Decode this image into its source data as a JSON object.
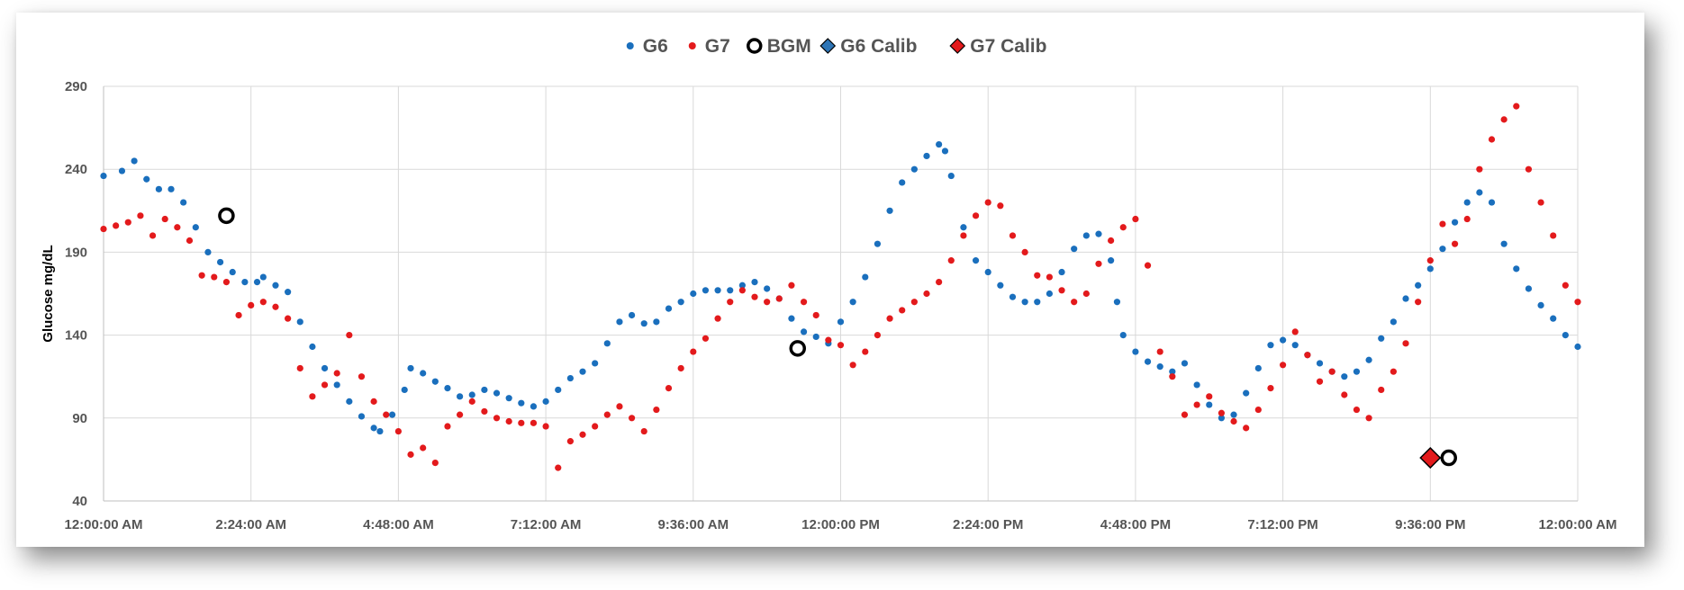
{
  "chart_data": {
    "type": "scatter",
    "title": "",
    "ylabel": "Glucose mg/dL",
    "xlabel": "",
    "ylim": [
      40,
      290
    ],
    "yticks": [
      40,
      90,
      140,
      190,
      240,
      290
    ],
    "xlim": [
      0,
      24
    ],
    "xtick_hours": [
      0,
      2.4,
      4.8,
      7.2,
      9.6,
      12,
      14.4,
      16.8,
      19.2,
      21.6,
      24
    ],
    "xtick_labels": [
      "12:00:00 AM",
      "2:24:00 AM",
      "4:48:00 AM",
      "7:12:00 AM",
      "9:36:00 AM",
      "12:00:00 PM",
      "2:24:00 PM",
      "4:48:00 PM",
      "7:12:00 PM",
      "9:36:00 PM",
      "12:00:00 AM"
    ],
    "grid": true,
    "legend_position": "top-center",
    "series": [
      {
        "name": "G6",
        "marker": "dot",
        "color": "#1a6fbd",
        "points": [
          [
            0.0,
            236
          ],
          [
            0.3,
            239
          ],
          [
            0.5,
            245
          ],
          [
            0.7,
            234
          ],
          [
            0.9,
            228
          ],
          [
            1.1,
            228
          ],
          [
            1.3,
            220
          ],
          [
            1.5,
            205
          ],
          [
            1.7,
            190
          ],
          [
            1.9,
            184
          ],
          [
            2.1,
            178
          ],
          [
            2.3,
            172
          ],
          [
            2.5,
            172
          ],
          [
            2.6,
            175
          ],
          [
            2.8,
            170
          ],
          [
            3.0,
            166
          ],
          [
            3.2,
            148
          ],
          [
            3.4,
            133
          ],
          [
            3.6,
            120
          ],
          [
            3.8,
            110
          ],
          [
            4.0,
            100
          ],
          [
            4.2,
            91
          ],
          [
            4.4,
            84
          ],
          [
            4.5,
            82
          ],
          [
            4.7,
            92
          ],
          [
            4.9,
            107
          ],
          [
            5.0,
            120
          ],
          [
            5.2,
            117
          ],
          [
            5.4,
            112
          ],
          [
            5.6,
            108
          ],
          [
            5.8,
            103
          ],
          [
            6.0,
            104
          ],
          [
            6.2,
            107
          ],
          [
            6.4,
            105
          ],
          [
            6.6,
            102
          ],
          [
            6.8,
            99
          ],
          [
            7.0,
            97
          ],
          [
            7.2,
            100
          ],
          [
            7.4,
            107
          ],
          [
            7.6,
            114
          ],
          [
            7.8,
            118
          ],
          [
            8.0,
            123
          ],
          [
            8.2,
            135
          ],
          [
            8.4,
            148
          ],
          [
            8.6,
            152
          ],
          [
            8.8,
            147
          ],
          [
            9.0,
            148
          ],
          [
            9.2,
            156
          ],
          [
            9.4,
            160
          ],
          [
            9.6,
            165
          ],
          [
            9.8,
            167
          ],
          [
            10.0,
            167
          ],
          [
            10.2,
            167
          ],
          [
            10.4,
            170
          ],
          [
            10.6,
            172
          ],
          [
            10.8,
            168
          ],
          [
            11.0,
            162
          ],
          [
            11.2,
            150
          ],
          [
            11.4,
            142
          ],
          [
            11.6,
            139
          ],
          [
            11.8,
            135
          ],
          [
            12.0,
            148
          ],
          [
            12.2,
            160
          ],
          [
            12.4,
            175
          ],
          [
            12.6,
            195
          ],
          [
            12.8,
            215
          ],
          [
            13.0,
            232
          ],
          [
            13.2,
            240
          ],
          [
            13.4,
            248
          ],
          [
            13.6,
            255
          ],
          [
            13.7,
            251
          ],
          [
            13.8,
            236
          ],
          [
            14.0,
            205
          ],
          [
            14.2,
            185
          ],
          [
            14.4,
            178
          ],
          [
            14.6,
            170
          ],
          [
            14.8,
            163
          ],
          [
            15.0,
            160
          ],
          [
            15.2,
            160
          ],
          [
            15.4,
            165
          ],
          [
            15.6,
            178
          ],
          [
            15.8,
            192
          ],
          [
            16.0,
            200
          ],
          [
            16.2,
            201
          ],
          [
            16.4,
            185
          ],
          [
            16.5,
            160
          ],
          [
            16.6,
            140
          ],
          [
            16.8,
            130
          ],
          [
            17.0,
            124
          ],
          [
            17.2,
            121
          ],
          [
            17.4,
            118
          ],
          [
            17.6,
            123
          ],
          [
            17.8,
            110
          ],
          [
            18.0,
            98
          ],
          [
            18.2,
            90
          ],
          [
            18.4,
            92
          ],
          [
            18.6,
            105
          ],
          [
            18.8,
            120
          ],
          [
            19.0,
            134
          ],
          [
            19.2,
            137
          ],
          [
            19.4,
            134
          ],
          [
            19.6,
            128
          ],
          [
            19.8,
            123
          ],
          [
            20.0,
            118
          ],
          [
            20.2,
            115
          ],
          [
            20.4,
            118
          ],
          [
            20.6,
            125
          ],
          [
            20.8,
            138
          ],
          [
            21.0,
            148
          ],
          [
            21.2,
            162
          ],
          [
            21.4,
            170
          ],
          [
            21.6,
            180
          ],
          [
            21.8,
            192
          ],
          [
            22.0,
            208
          ],
          [
            22.2,
            220
          ],
          [
            22.4,
            226
          ],
          [
            22.6,
            220
          ],
          [
            22.8,
            195
          ],
          [
            23.0,
            180
          ],
          [
            23.2,
            168
          ],
          [
            23.4,
            158
          ],
          [
            23.6,
            150
          ],
          [
            23.8,
            140
          ],
          [
            24.0,
            133
          ]
        ]
      },
      {
        "name": "G7",
        "marker": "dot",
        "color": "#e31a1c",
        "points": [
          [
            0.0,
            204
          ],
          [
            0.2,
            206
          ],
          [
            0.4,
            208
          ],
          [
            0.6,
            212
          ],
          [
            0.8,
            200
          ],
          [
            1.0,
            210
          ],
          [
            1.2,
            205
          ],
          [
            1.4,
            197
          ],
          [
            1.6,
            176
          ],
          [
            1.8,
            175
          ],
          [
            2.0,
            172
          ],
          [
            2.2,
            152
          ],
          [
            2.4,
            158
          ],
          [
            2.6,
            160
          ],
          [
            2.8,
            157
          ],
          [
            3.0,
            150
          ],
          [
            3.2,
            120
          ],
          [
            3.4,
            103
          ],
          [
            3.6,
            110
          ],
          [
            3.8,
            117
          ],
          [
            4.0,
            140
          ],
          [
            4.2,
            115
          ],
          [
            4.4,
            100
          ],
          [
            4.6,
            92
          ],
          [
            4.8,
            82
          ],
          [
            5.0,
            68
          ],
          [
            5.2,
            72
          ],
          [
            5.4,
            63
          ],
          [
            5.6,
            85
          ],
          [
            5.8,
            92
          ],
          [
            6.0,
            100
          ],
          [
            6.2,
            94
          ],
          [
            6.4,
            90
          ],
          [
            6.6,
            88
          ],
          [
            6.8,
            87
          ],
          [
            7.0,
            87
          ],
          [
            7.2,
            85
          ],
          [
            7.4,
            60
          ],
          [
            7.6,
            76
          ],
          [
            7.8,
            80
          ],
          [
            8.0,
            85
          ],
          [
            8.2,
            92
          ],
          [
            8.4,
            97
          ],
          [
            8.6,
            90
          ],
          [
            8.8,
            82
          ],
          [
            9.0,
            95
          ],
          [
            9.2,
            108
          ],
          [
            9.4,
            120
          ],
          [
            9.6,
            130
          ],
          [
            9.8,
            138
          ],
          [
            10.0,
            150
          ],
          [
            10.2,
            160
          ],
          [
            10.4,
            167
          ],
          [
            10.6,
            163
          ],
          [
            10.8,
            160
          ],
          [
            11.0,
            162
          ],
          [
            11.2,
            170
          ],
          [
            11.4,
            160
          ],
          [
            11.6,
            152
          ],
          [
            11.8,
            137
          ],
          [
            12.0,
            134
          ],
          [
            12.2,
            122
          ],
          [
            12.4,
            130
          ],
          [
            12.6,
            140
          ],
          [
            12.8,
            150
          ],
          [
            13.0,
            155
          ],
          [
            13.2,
            160
          ],
          [
            13.4,
            165
          ],
          [
            13.6,
            172
          ],
          [
            13.8,
            185
          ],
          [
            14.0,
            200
          ],
          [
            14.2,
            212
          ],
          [
            14.4,
            220
          ],
          [
            14.6,
            218
          ],
          [
            14.8,
            200
          ],
          [
            15.0,
            190
          ],
          [
            15.2,
            176
          ],
          [
            15.4,
            175
          ],
          [
            15.6,
            167
          ],
          [
            15.8,
            160
          ],
          [
            16.0,
            165
          ],
          [
            16.2,
            183
          ],
          [
            16.4,
            197
          ],
          [
            16.6,
            205
          ],
          [
            16.8,
            210
          ],
          [
            17.0,
            182
          ],
          [
            17.2,
            130
          ],
          [
            17.4,
            115
          ],
          [
            17.6,
            92
          ],
          [
            17.8,
            98
          ],
          [
            18.0,
            103
          ],
          [
            18.2,
            93
          ],
          [
            18.4,
            88
          ],
          [
            18.6,
            84
          ],
          [
            18.8,
            95
          ],
          [
            19.0,
            108
          ],
          [
            19.2,
            122
          ],
          [
            19.4,
            142
          ],
          [
            19.6,
            128
          ],
          [
            19.8,
            112
          ],
          [
            20.0,
            118
          ],
          [
            20.2,
            104
          ],
          [
            20.4,
            95
          ],
          [
            20.6,
            90
          ],
          [
            20.8,
            107
          ],
          [
            21.0,
            118
          ],
          [
            21.2,
            135
          ],
          [
            21.4,
            160
          ],
          [
            21.6,
            185
          ],
          [
            21.8,
            207
          ],
          [
            22.0,
            195
          ],
          [
            22.2,
            210
          ],
          [
            22.4,
            240
          ],
          [
            22.6,
            258
          ],
          [
            22.8,
            270
          ],
          [
            23.0,
            278
          ],
          [
            23.2,
            240
          ],
          [
            23.4,
            220
          ],
          [
            23.6,
            200
          ],
          [
            23.8,
            170
          ],
          [
            24.0,
            160
          ]
        ]
      },
      {
        "name": "BGM",
        "marker": "ring",
        "color": "#000000",
        "points": [
          [
            2.0,
            212
          ],
          [
            11.3,
            132
          ],
          [
            21.9,
            66
          ]
        ]
      },
      {
        "name": "G6 Calib",
        "marker": "diamond",
        "color": "#2e75b6",
        "points": []
      },
      {
        "name": "G7 Calib",
        "marker": "diamond",
        "color": "#e31a1c",
        "points": [
          [
            21.6,
            66
          ]
        ]
      }
    ]
  }
}
